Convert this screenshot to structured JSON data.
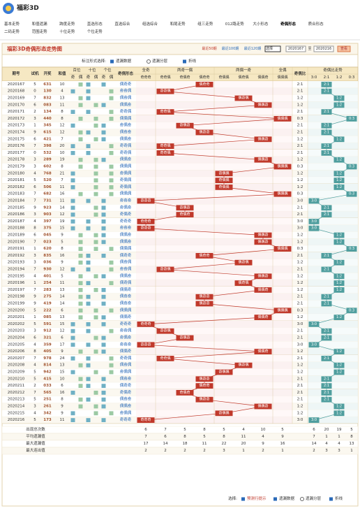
{
  "header": {
    "logo": "福彩3D",
    "nav": [
      [
        "基本走势",
        "和值遗漏",
        "跨度走势",
        "直选形态",
        "直选综合",
        "组选综合",
        "和尾走势",
        "组三走势",
        "012路走势",
        "大小形态",
        "奇偶形态",
        "质合形态"
      ],
      [
        "二码走势",
        "范围走势",
        "十位走势",
        "个位走势"
      ]
    ]
  },
  "panel": {
    "title": "福彩3D奇偶形态走势图",
    "ranges": [
      "最近50期",
      "最近100期",
      "最近120期"
    ],
    "select": "选择",
    "from": "2020167",
    "to_word": "至",
    "to": "2020216",
    "button": "查看"
  },
  "options": {
    "label": "标注形式选择:",
    "items": [
      "遗漏数据",
      "遗漏分层",
      "折线"
    ]
  },
  "table": {
    "headers": {
      "period": "期号",
      "test": "试机",
      "number": "开奖",
      "sum": "和值",
      "positions": [
        "百位",
        "十位",
        "个位"
      ],
      "odd": "奇",
      "even": "偶",
      "form": "奇偶形态",
      "groups": [
        "全奇",
        "两奇一偶",
        "两偶一奇",
        "全偶"
      ],
      "patterns": [
        "奇奇奇",
        "奇奇偶",
        "奇偶奇",
        "偶奇奇",
        "奇偶偶",
        "偶奇偶",
        "偶偶奇",
        "偶偶偶"
      ],
      "ratio": "奇偶比",
      "trend": "奇偶比走势",
      "ratios": [
        "3:0",
        "2:1",
        "1:2",
        "0:3"
      ]
    },
    "rows": [
      [
        "2020167",
        5,
        "631",
        10,
        "偶奇奇",
        "2:1"
      ],
      [
        "2020168",
        0,
        "130",
        4,
        "奇奇偶",
        "2:1"
      ],
      [
        "2020169",
        7,
        "832",
        13,
        "偶奇偶",
        "1:2"
      ],
      [
        "2020170",
        6,
        "083",
        11,
        "偶偶奇",
        "1:2"
      ],
      [
        "2020171",
        2,
        "134",
        8,
        "奇奇偶",
        "2:1"
      ],
      [
        "2020172",
        3,
        "440",
        8,
        "偶偶偶",
        "0:3"
      ],
      [
        "2020173",
        1,
        "345",
        12,
        "奇偶奇",
        "2:1"
      ],
      [
        "2020174",
        9,
        "615",
        12,
        "偶奇奇",
        "2:1"
      ],
      [
        "2020175",
        6,
        "421",
        7,
        "偶偶奇",
        "1:2"
      ],
      [
        "2020176",
        7,
        "398",
        20,
        "奇奇偶",
        "2:1"
      ],
      [
        "2020177",
        0,
        "532",
        10,
        "奇奇偶",
        "2:1"
      ],
      [
        "2020178",
        3,
        "289",
        19,
        "偶偶奇",
        "1:2"
      ],
      [
        "2020179",
        3,
        "602",
        8,
        "偶偶偶",
        "0:3"
      ],
      [
        "2020180",
        4,
        "768",
        21,
        "奇偶偶",
        "1:2"
      ],
      [
        "2020181",
        5,
        "520",
        7,
        "奇偶偶",
        "1:2"
      ],
      [
        "2020182",
        6,
        "506",
        11,
        "奇偶偶",
        "1:2"
      ],
      [
        "2020183",
        7,
        "682",
        16,
        "偶偶偶",
        "0:3"
      ],
      [
        "2020184",
        7,
        "731",
        11,
        "奇奇奇",
        "3:0"
      ],
      [
        "2020185",
        9,
        "923",
        14,
        "奇偶奇",
        "2:1"
      ],
      [
        "2020186",
        3,
        "903",
        12,
        "奇偶奇",
        "2:1"
      ],
      [
        "2020187",
        4,
        "397",
        19,
        "奇奇奇",
        "3:0"
      ],
      [
        "2020188",
        8,
        "375",
        15,
        "奇奇奇",
        "3:0"
      ],
      [
        "2020189",
        6,
        "045",
        9,
        "偶偶奇",
        "1:2"
      ],
      [
        "2020190",
        7,
        "023",
        5,
        "偶偶奇",
        "1:2"
      ],
      [
        "2020191",
        1,
        "620",
        8,
        "偶偶偶",
        "0:3"
      ],
      [
        "2020192",
        3,
        "835",
        16,
        "偶奇奇",
        "2:1"
      ],
      [
        "2020193",
        3,
        "036",
        9,
        "偶奇偶",
        "1:2"
      ],
      [
        "2020194",
        7,
        "930",
        12,
        "奇奇偶",
        "2:1"
      ],
      [
        "2020195",
        4,
        "401",
        5,
        "偶偶奇",
        "1:2"
      ],
      [
        "2020196",
        1,
        "254",
        11,
        "偶奇偶",
        "1:2"
      ],
      [
        "2020197",
        7,
        "283",
        13,
        "偶偶奇",
        "1:2"
      ],
      [
        "2020198",
        9,
        "275",
        14,
        "偶奇奇",
        "2:1"
      ],
      [
        "2020199",
        9,
        "419",
        14,
        "偶奇奇",
        "2:1"
      ],
      [
        "2020200",
        5,
        "222",
        6,
        "偶偶偶",
        "0:3"
      ],
      [
        "2020201",
        1,
        "085",
        13,
        "偶偶奇",
        "1:2"
      ],
      [
        "2020202",
        5,
        "591",
        15,
        "奇奇奇",
        "3:0"
      ],
      [
        "2020203",
        3,
        "912",
        12,
        "奇奇偶",
        "2:1"
      ],
      [
        "2020204",
        6,
        "321",
        6,
        "奇偶奇",
        "2:1"
      ],
      [
        "2020205",
        4,
        "359",
        17,
        "奇奇奇",
        "3:0"
      ],
      [
        "2020206",
        8,
        "405",
        9,
        "偶偶奇",
        "1:2"
      ],
      [
        "2020207",
        7,
        "978",
        24,
        "奇奇偶",
        "2:1"
      ],
      [
        "2020208",
        4,
        "814",
        13,
        "偶奇偶",
        "1:2"
      ],
      [
        "2020209",
        5,
        "942",
        15,
        "奇偶偶",
        "1:2"
      ],
      [
        "2020210",
        5,
        "415",
        10,
        "偶奇奇",
        "2:1"
      ],
      [
        "2020211",
        2,
        "033",
        6,
        "偶奇奇",
        "2:1"
      ],
      [
        "2020212",
        7,
        "565",
        16,
        "奇偶奇",
        "2:1"
      ],
      [
        "2020213",
        5,
        "251",
        8,
        "偶奇奇",
        "2:1"
      ],
      [
        "2020214",
        3,
        "261",
        9,
        "偶偶奇",
        "1:2"
      ],
      [
        "2020215",
        4,
        "342",
        9,
        "奇偶偶",
        "1:2"
      ],
      [
        "2020216",
        5,
        "173",
        11,
        "奇奇奇",
        "3:0"
      ]
    ],
    "stats": [
      {
        "label": "出现总次数",
        "values": [
          6,
          7,
          5,
          8,
          5,
          4,
          10,
          5,
          6,
          20,
          19,
          5
        ]
      },
      {
        "label": "平均遗漏值",
        "values": [
          7,
          6,
          8,
          5,
          8,
          11,
          4,
          9,
          7,
          1,
          1,
          8
        ]
      },
      {
        "label": "最大遗漏值",
        "values": [
          17,
          14,
          18,
          11,
          22,
          20,
          9,
          16,
          14,
          4,
          4,
          13
        ]
      },
      {
        "label": "最大连出值",
        "values": [
          2,
          2,
          2,
          2,
          3,
          1,
          2,
          1,
          2,
          3,
          3,
          1
        ]
      }
    ]
  },
  "footer": {
    "label": "选择:",
    "items": [
      "预测行提示",
      "遗漏数据",
      "遗漏分层",
      "折线"
    ]
  }
}
